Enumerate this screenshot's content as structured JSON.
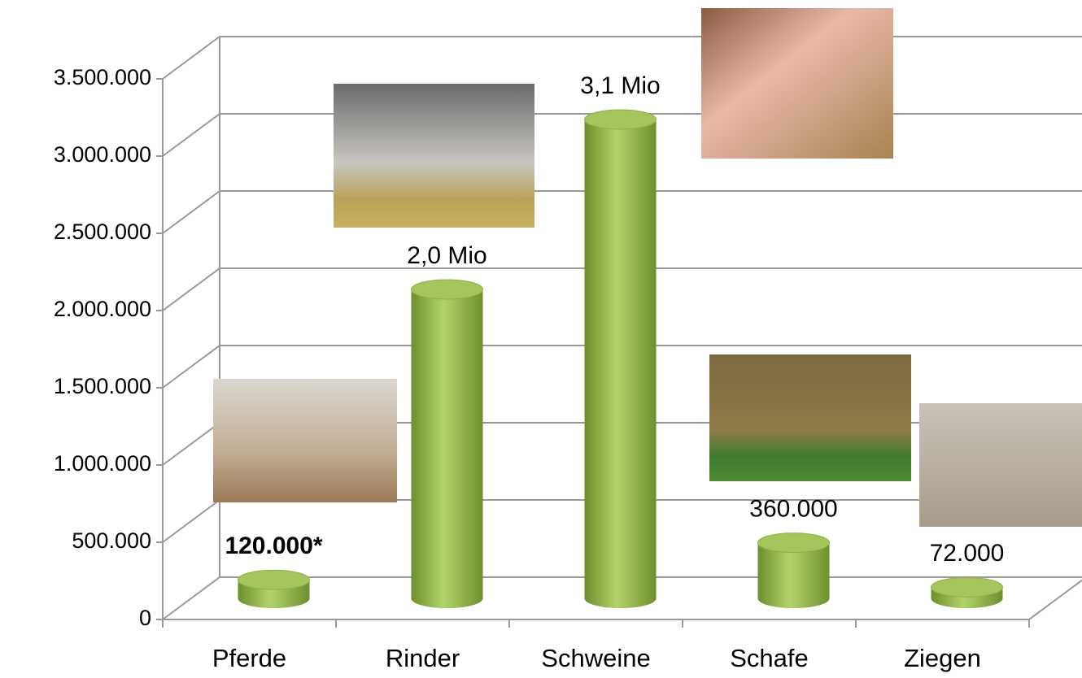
{
  "chart_data": {
    "type": "bar3d",
    "categories": [
      "Pferde",
      "Rinder",
      "Schweine",
      "Schafe",
      "Ziegen"
    ],
    "values": [
      120000,
      2000000,
      3100000,
      360000,
      72000
    ],
    "value_labels": [
      "120.000*",
      "2,0 Mio",
      "3,1 Mio",
      "360.000",
      "72.000"
    ],
    "color": "#9bbb59",
    "ylim": [
      0,
      3500000
    ],
    "yticks": [
      0,
      {
        "value": 500000,
        "label": "500.000"
      },
      {
        "value": 1000000,
        "label": "1.000.000"
      },
      {
        "value": 1500000,
        "label": "1.500.000"
      },
      {
        "value": 2000000,
        "label": "2.000.000"
      },
      {
        "value": 2500000,
        "label": "2.500.000"
      },
      {
        "value": 3000000,
        "label": "3.000.000"
      },
      {
        "value": 3500000,
        "label": "3.500.000"
      }
    ],
    "grid": true
  }
}
